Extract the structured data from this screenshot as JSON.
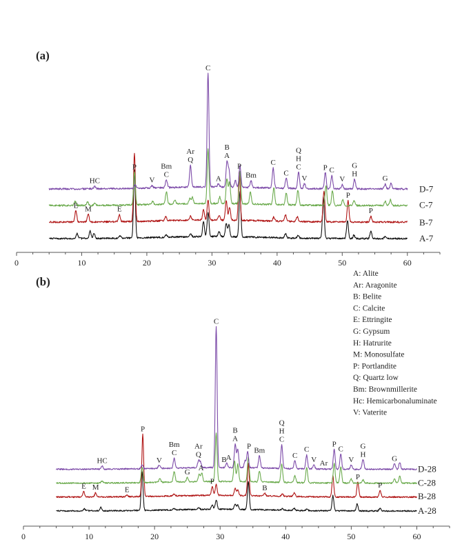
{
  "chart_data": [
    {
      "type": "line",
      "panel_label": "(a)",
      "x_ticks": [
        0,
        10,
        20,
        30,
        40,
        50,
        60
      ],
      "xlim": [
        0,
        65
      ],
      "x_range_measured": [
        5,
        60
      ],
      "series": [
        {
          "name": "A-7",
          "color": "#111111",
          "baseline": 0,
          "noise": 1.0,
          "peaks": [
            [
              9.3,
              6
            ],
            [
              11.3,
              9
            ],
            [
              11.9,
              6
            ],
            [
              15.9,
              3
            ],
            [
              18.1,
              82
            ],
            [
              23.0,
              3
            ],
            [
              26.7,
              4
            ],
            [
              28.7,
              18
            ],
            [
              29.4,
              30
            ],
            [
              31.1,
              6
            ],
            [
              32.2,
              16
            ],
            [
              32.6,
              14
            ],
            [
              34.3,
              54
            ],
            [
              41.3,
              5
            ],
            [
              43.2,
              3
            ],
            [
              47.1,
              50
            ],
            [
              50.8,
              22
            ],
            [
              51.8,
              4
            ],
            [
              54.4,
              9
            ],
            [
              56.6,
              3
            ]
          ]
        },
        {
          "name": "B-7",
          "color": "#b01515",
          "baseline": 24,
          "noise": 1.0,
          "peaks": [
            [
              9.1,
              14
            ],
            [
              11.0,
              10
            ],
            [
              15.8,
              8
            ],
            [
              18.1,
              82
            ],
            [
              22.9,
              5
            ],
            [
              26.7,
              5
            ],
            [
              28.7,
              12
            ],
            [
              29.4,
              24
            ],
            [
              31.1,
              6
            ],
            [
              32.2,
              24
            ],
            [
              32.7,
              16
            ],
            [
              34.2,
              60
            ],
            [
              39.5,
              5
            ],
            [
              41.3,
              8
            ],
            [
              43.1,
              6
            ],
            [
              47.2,
              38
            ],
            [
              50.9,
              26
            ],
            [
              54.4,
              7
            ]
          ]
        },
        {
          "name": "C-7",
          "color": "#6aaa4c",
          "baseline": 48,
          "noise": 1.0,
          "peaks": [
            [
              9.0,
              5
            ],
            [
              10.9,
              4
            ],
            [
              12.0,
              3
            ],
            [
              18.1,
              40
            ],
            [
              20.9,
              4
            ],
            [
              23.0,
              15
            ],
            [
              24.3,
              5
            ],
            [
              26.6,
              6
            ],
            [
              27.0,
              8
            ],
            [
              29.4,
              66
            ],
            [
              31.2,
              8
            ],
            [
              32.3,
              30
            ],
            [
              32.7,
              26
            ],
            [
              34.3,
              40
            ],
            [
              35.9,
              14
            ],
            [
              39.5,
              20
            ],
            [
              41.4,
              14
            ],
            [
              43.2,
              18
            ],
            [
              47.5,
              24
            ],
            [
              48.5,
              18
            ],
            [
              50.1,
              7
            ],
            [
              51.8,
              6
            ],
            [
              56.6,
              5
            ],
            [
              57.4,
              7
            ]
          ]
        },
        {
          "name": "D-7",
          "color": "#7c4aa8",
          "baseline": 72,
          "noise": 1.0,
          "peaks": [
            [
              12.0,
              3
            ],
            [
              18.2,
              4
            ],
            [
              20.8,
              3
            ],
            [
              23.0,
              10
            ],
            [
              26.7,
              26
            ],
            [
              29.4,
              138
            ],
            [
              31.0,
              4
            ],
            [
              32.3,
              30
            ],
            [
              32.6,
              20
            ],
            [
              33.6,
              8
            ],
            [
              34.3,
              26
            ],
            [
              36.0,
              8
            ],
            [
              39.4,
              24
            ],
            [
              41.4,
              12
            ],
            [
              43.3,
              20
            ],
            [
              44.2,
              6
            ],
            [
              47.4,
              20
            ],
            [
              48.4,
              16
            ],
            [
              50.0,
              5
            ],
            [
              51.9,
              12
            ],
            [
              56.6,
              6
            ],
            [
              57.5,
              7
            ]
          ]
        }
      ],
      "series_labels": [
        "D-7",
        "C-7",
        "B-7",
        "A-7"
      ],
      "annotations": [
        {
          "series": "D-7",
          "x": 12.0,
          "lines": [
            "HC"
          ]
        },
        {
          "series": "D-7",
          "x": 20.8,
          "lines": [
            "V"
          ]
        },
        {
          "series": "D-7",
          "x": 23.0,
          "lines": [
            "Bm",
            "C"
          ]
        },
        {
          "series": "D-7",
          "x": 26.7,
          "lines": [
            "Ar",
            "Q"
          ]
        },
        {
          "series": "D-7",
          "x": 29.4,
          "lines": [
            "C"
          ]
        },
        {
          "series": "D-7",
          "x": 31.0,
          "lines": [
            "A"
          ]
        },
        {
          "series": "D-7",
          "x": 32.3,
          "lines": [
            "B",
            "A"
          ]
        },
        {
          "series": "D-7",
          "x": 36.0,
          "lines": [
            "Bm"
          ]
        },
        {
          "series": "D-7",
          "x": 39.4,
          "lines": [
            "C"
          ]
        },
        {
          "series": "D-7",
          "x": 41.4,
          "lines": [
            "C"
          ]
        },
        {
          "series": "D-7",
          "x": 43.3,
          "lines": [
            "Q",
            "H",
            "C"
          ]
        },
        {
          "series": "D-7",
          "x": 44.2,
          "lines": [
            "V"
          ]
        },
        {
          "series": "D-7",
          "x": 47.4,
          "lines": [
            "P"
          ]
        },
        {
          "series": "D-7",
          "x": 48.4,
          "lines": [
            "C"
          ]
        },
        {
          "series": "D-7",
          "x": 50.0,
          "lines": [
            "V"
          ]
        },
        {
          "series": "D-7",
          "x": 51.9,
          "lines": [
            "G",
            "H"
          ]
        },
        {
          "series": "D-7",
          "x": 56.6,
          "lines": [
            "G"
          ]
        },
        {
          "series": "C-7",
          "x": 18.1,
          "lines": [
            "P"
          ]
        },
        {
          "series": "B-7",
          "x": 34.2,
          "lines": [
            "P"
          ]
        },
        {
          "series": "B-7",
          "x": 9.1,
          "lines": [
            "E"
          ]
        },
        {
          "series": "B-7",
          "x": 11.0,
          "lines": [
            "M"
          ]
        },
        {
          "series": "B-7",
          "x": 15.8,
          "lines": [
            "E"
          ]
        },
        {
          "series": "B-7",
          "x": 50.9,
          "lines": [
            "P"
          ]
        },
        {
          "series": "B-7",
          "x": 54.4,
          "lines": [
            "P"
          ]
        }
      ]
    },
    {
      "type": "line",
      "panel_label": "(b)",
      "x_ticks": [
        0,
        10,
        20,
        30,
        40,
        50,
        60
      ],
      "xlim": [
        0,
        65
      ],
      "x_range_measured": [
        5,
        60
      ],
      "series": [
        {
          "name": "A-28",
          "color": "#111111",
          "baseline": 0,
          "noise": 1.0,
          "peaks": [
            [
              9.3,
              3
            ],
            [
              11.8,
              5
            ],
            [
              18.1,
              56
            ],
            [
              23.0,
              2
            ],
            [
              26.7,
              3
            ],
            [
              28.8,
              6
            ],
            [
              29.4,
              14
            ],
            [
              32.3,
              8
            ],
            [
              32.7,
              6
            ],
            [
              34.3,
              40
            ],
            [
              39.5,
              2
            ],
            [
              41.3,
              3
            ],
            [
              43.2,
              2
            ],
            [
              47.2,
              22
            ],
            [
              50.9,
              10
            ],
            [
              54.4,
              4
            ]
          ]
        },
        {
          "name": "B-28",
          "color": "#b01515",
          "baseline": 22,
          "noise": 1.0,
          "peaks": [
            [
              9.2,
              8
            ],
            [
              11.0,
              6
            ],
            [
              15.8,
              3
            ],
            [
              18.2,
              90
            ],
            [
              23.0,
              3
            ],
            [
              28.8,
              12
            ],
            [
              29.4,
              16
            ],
            [
              32.3,
              10
            ],
            [
              32.7,
              8
            ],
            [
              34.3,
              46
            ],
            [
              36.8,
              4
            ],
            [
              39.5,
              3
            ],
            [
              41.3,
              5
            ],
            [
              47.2,
              30
            ],
            [
              51.0,
              22
            ],
            [
              54.4,
              10
            ]
          ]
        },
        {
          "name": "C-28",
          "color": "#6aaa4c",
          "baseline": 44,
          "noise": 1.0,
          "peaks": [
            [
              12.0,
              3
            ],
            [
              18.1,
              22
            ],
            [
              20.8,
              5
            ],
            [
              23.0,
              15
            ],
            [
              25.0,
              6
            ],
            [
              26.8,
              10
            ],
            [
              27.2,
              12
            ],
            [
              29.4,
              70
            ],
            [
              32.2,
              30
            ],
            [
              32.7,
              25
            ],
            [
              34.3,
              35
            ],
            [
              36.0,
              16
            ],
            [
              39.4,
              26
            ],
            [
              41.4,
              10
            ],
            [
              43.2,
              22
            ],
            [
              47.4,
              28
            ],
            [
              48.4,
              24
            ],
            [
              50.0,
              6
            ],
            [
              51.8,
              5
            ],
            [
              56.6,
              6
            ],
            [
              57.4,
              10
            ]
          ]
        },
        {
          "name": "D-28",
          "color": "#7c4aa8",
          "baseline": 66,
          "noise": 1.0,
          "peaks": [
            [
              12.0,
              5
            ],
            [
              18.1,
              6
            ],
            [
              20.7,
              5
            ],
            [
              23.0,
              14
            ],
            [
              26.7,
              10
            ],
            [
              27.0,
              8
            ],
            [
              29.4,
              204
            ],
            [
              31.0,
              6
            ],
            [
              32.3,
              34
            ],
            [
              32.7,
              26
            ],
            [
              33.8,
              10
            ],
            [
              34.2,
              24
            ],
            [
              36.0,
              18
            ],
            [
              39.4,
              34
            ],
            [
              41.4,
              12
            ],
            [
              43.2,
              20
            ],
            [
              44.3,
              6
            ],
            [
              47.4,
              28
            ],
            [
              48.4,
              22
            ],
            [
              50.0,
              6
            ],
            [
              51.8,
              14
            ],
            [
              56.6,
              8
            ],
            [
              57.4,
              10
            ]
          ]
        }
      ],
      "series_labels": [
        "D-28",
        "C-28",
        "B-28",
        "A-28"
      ],
      "annotations": [
        {
          "series": "D-28",
          "x": 12.0,
          "lines": [
            "HC"
          ]
        },
        {
          "series": "D-28",
          "x": 20.7,
          "lines": [
            "V"
          ]
        },
        {
          "series": "D-28",
          "x": 23.0,
          "lines": [
            "Bm",
            "C"
          ]
        },
        {
          "series": "D-28",
          "x": 26.7,
          "lines": [
            "Ar",
            "Q"
          ]
        },
        {
          "series": "D-28",
          "x": 29.4,
          "lines": [
            "C"
          ]
        },
        {
          "series": "D-28",
          "x": 30.6,
          "lines": [
            "B"
          ]
        },
        {
          "series": "D-28",
          "x": 31.3,
          "lines": [
            "A"
          ]
        },
        {
          "series": "D-28",
          "x": 32.3,
          "lines": [
            "B",
            "A"
          ]
        },
        {
          "series": "D-28",
          "x": 34.4,
          "lines": [
            "P"
          ]
        },
        {
          "series": "D-28",
          "x": 36.0,
          "lines": [
            "Bm"
          ]
        },
        {
          "series": "D-28",
          "x": 39.4,
          "lines": [
            "Q",
            "H",
            "C"
          ]
        },
        {
          "series": "D-28",
          "x": 41.4,
          "lines": [
            "C"
          ]
        },
        {
          "series": "D-28",
          "x": 43.2,
          "lines": [
            "C"
          ]
        },
        {
          "series": "D-28",
          "x": 44.3,
          "lines": [
            "V"
          ]
        },
        {
          "series": "D-28",
          "x": 45.8,
          "lines": [
            "Ar"
          ]
        },
        {
          "series": "D-28",
          "x": 47.4,
          "lines": [
            "P"
          ]
        },
        {
          "series": "D-28",
          "x": 48.4,
          "lines": [
            "C"
          ]
        },
        {
          "series": "D-28",
          "x": 50.0,
          "lines": [
            "V"
          ]
        },
        {
          "series": "D-28",
          "x": 51.8,
          "lines": [
            "G",
            "H"
          ]
        },
        {
          "series": "D-28",
          "x": 56.6,
          "lines": [
            "G"
          ]
        },
        {
          "series": "C-28",
          "x": 25.0,
          "lines": [
            "G"
          ]
        },
        {
          "series": "C-28",
          "x": 27.1,
          "lines": [
            "A"
          ]
        },
        {
          "series": "B-28",
          "x": 18.2,
          "lines": [
            "P"
          ]
        },
        {
          "series": "B-28",
          "x": 9.2,
          "lines": [
            "E"
          ]
        },
        {
          "series": "B-28",
          "x": 11.0,
          "lines": [
            "M"
          ]
        },
        {
          "series": "B-28",
          "x": 15.8,
          "lines": [
            "E"
          ]
        },
        {
          "series": "B-28",
          "x": 28.8,
          "lines": [
            "P"
          ]
        },
        {
          "series": "B-28",
          "x": 36.8,
          "lines": [
            "B"
          ]
        },
        {
          "series": "B-28",
          "x": 51.0,
          "lines": [
            "P"
          ]
        },
        {
          "series": "B-28",
          "x": 54.4,
          "lines": [
            "P"
          ]
        }
      ],
      "legend": [
        "A: Alite",
        "Ar: Aragonite",
        "B: Belite",
        "C: Calcite",
        "E: Ettringite",
        "G: Gypsum",
        "H: Hatrurite",
        "M: Monosulfate",
        "P: Portlandite",
        "Q: Quartz low",
        "Bm: Brownmillerite",
        "Hc: Hemicarbonaluminate",
        "V: Vaterite"
      ]
    }
  ]
}
